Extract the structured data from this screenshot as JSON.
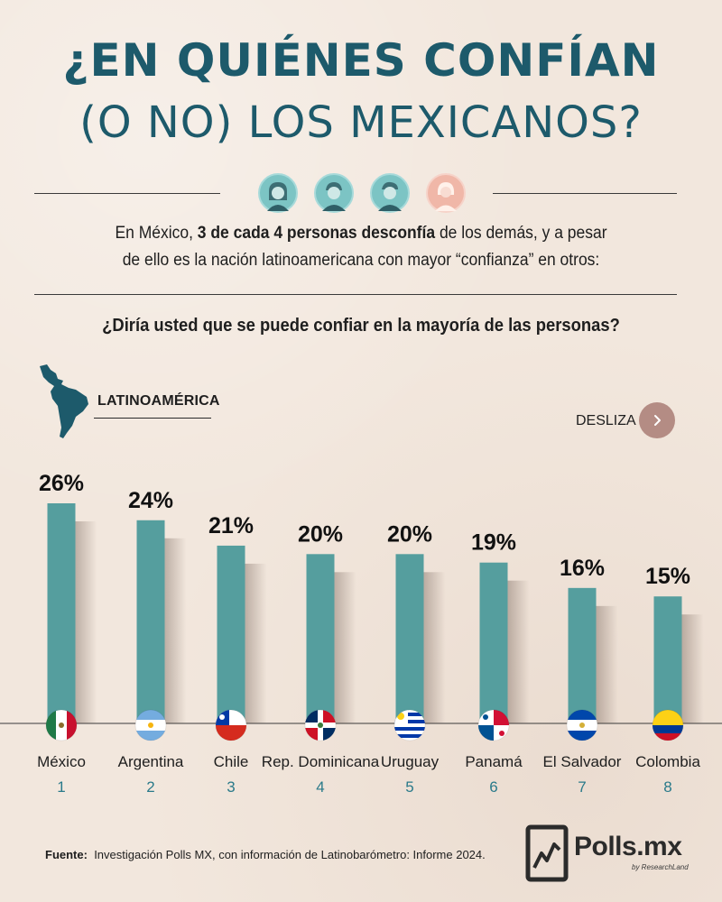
{
  "header": {
    "title_line1": "¿EN QUIÉNES CONFÍAN",
    "title_line2": "(O NO) LOS MEXICANOS?"
  },
  "intro": {
    "part1": "En México, ",
    "bold": "3 de cada 4 personas desconfía",
    "part2": " de los demás, y a pesar",
    "line2": "de ello es la nación latinoamericana con mayor “confianza” en otros:"
  },
  "question": "¿Diría usted que se puede confiar en la mayoría de las personas?",
  "region_label": "LATINOAMÉRICA",
  "swipe_label": "DESLIZA",
  "colors": {
    "title": "#1d5a6b",
    "bar": "#559e9e",
    "rank": "#2a7a8a",
    "swipe_button": "#b48c84"
  },
  "chart_data": {
    "type": "bar",
    "categories": [
      "México",
      "Argentina",
      "Chile",
      "Rep. Dominicana",
      "Uruguay",
      "Panamá",
      "El Salvador",
      "Colombia"
    ],
    "ranks": [
      "1",
      "2",
      "3",
      "4",
      "5",
      "6",
      "7",
      "8"
    ],
    "values": [
      26,
      24,
      21,
      20,
      20,
      19,
      16,
      15
    ],
    "value_labels": [
      "26%",
      "24%",
      "21%",
      "20%",
      "20%",
      "19%",
      "16%",
      "15%"
    ],
    "flags": [
      "mexico",
      "argentina",
      "chile",
      "dominican-republic",
      "uruguay",
      "panama",
      "el-salvador",
      "colombia"
    ],
    "ylim": [
      0,
      26
    ],
    "grid": false
  },
  "source": {
    "label": "Fuente:",
    "text": "Investigación Polls MX, con información de Latinobarómetro: Informe 2024."
  },
  "logo": {
    "name": "Polls.mx",
    "sub": "by ResearchLand"
  }
}
